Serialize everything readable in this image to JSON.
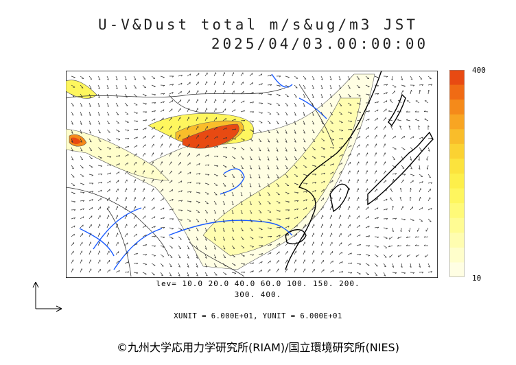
{
  "title": {
    "line1": "U-V&Dust total m/s&ug/m3 JST",
    "line2": "2025/04/03.00:00:00"
  },
  "colorbar": {
    "max_label": "400",
    "min_label": "10",
    "colors": [
      "#e84a12",
      "#f06b14",
      "#f58a1a",
      "#f8a522",
      "#f9bd2a",
      "#fbd232",
      "#fce33d",
      "#fdef4a",
      "#fef65e",
      "#fffa78",
      "#fffc93",
      "#fffdb0",
      "#fffecb",
      "#fffee3"
    ]
  },
  "levels": {
    "line1": "lev= 10.0 20.0 40.0 60.0 100. 150. 200.",
    "line2": "300. 400."
  },
  "units": "XUNIT = 6.000E+01, YUNIT = 6.000E+01",
  "credit": "©九州大学応用力学研究所(RIAM)/国立環境研究所(NIES)",
  "map_colors": {
    "coast": "#000000",
    "rivers": "#1b5cff",
    "borders": "#333333",
    "vectors": "#333333"
  }
}
